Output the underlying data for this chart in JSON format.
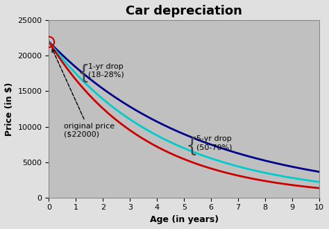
{
  "title": "Car depreciation",
  "xlabel": "Age (in years)",
  "ylabel": "Price (in $)",
  "initial_price": 22000,
  "x_max": 10,
  "ylim": [
    0,
    25000
  ],
  "xlim": [
    0,
    10
  ],
  "xticks": [
    0,
    1,
    2,
    3,
    4,
    5,
    6,
    7,
    8,
    9,
    10
  ],
  "yticks": [
    0,
    5000,
    10000,
    15000,
    20000,
    25000
  ],
  "bg_color": "#c0c0c0",
  "outer_bg": "#e0e0e0",
  "curve_high_color": "#00008b",
  "curve_mid_color": "#00cccc",
  "curve_low_color": "#cc0000",
  "rate_high": 0.18,
  "rate_mid": 0.23,
  "rate_low": 0.28,
  "annotation_original": "original price\n($22000)",
  "annotation_1yr": "1-yr drop\n(18-28%)",
  "annotation_5yr": "5-yr drop\n(50-70%)",
  "title_fontsize": 13,
  "axis_label_fontsize": 9,
  "tick_fontsize": 8,
  "annot_fontsize": 8
}
